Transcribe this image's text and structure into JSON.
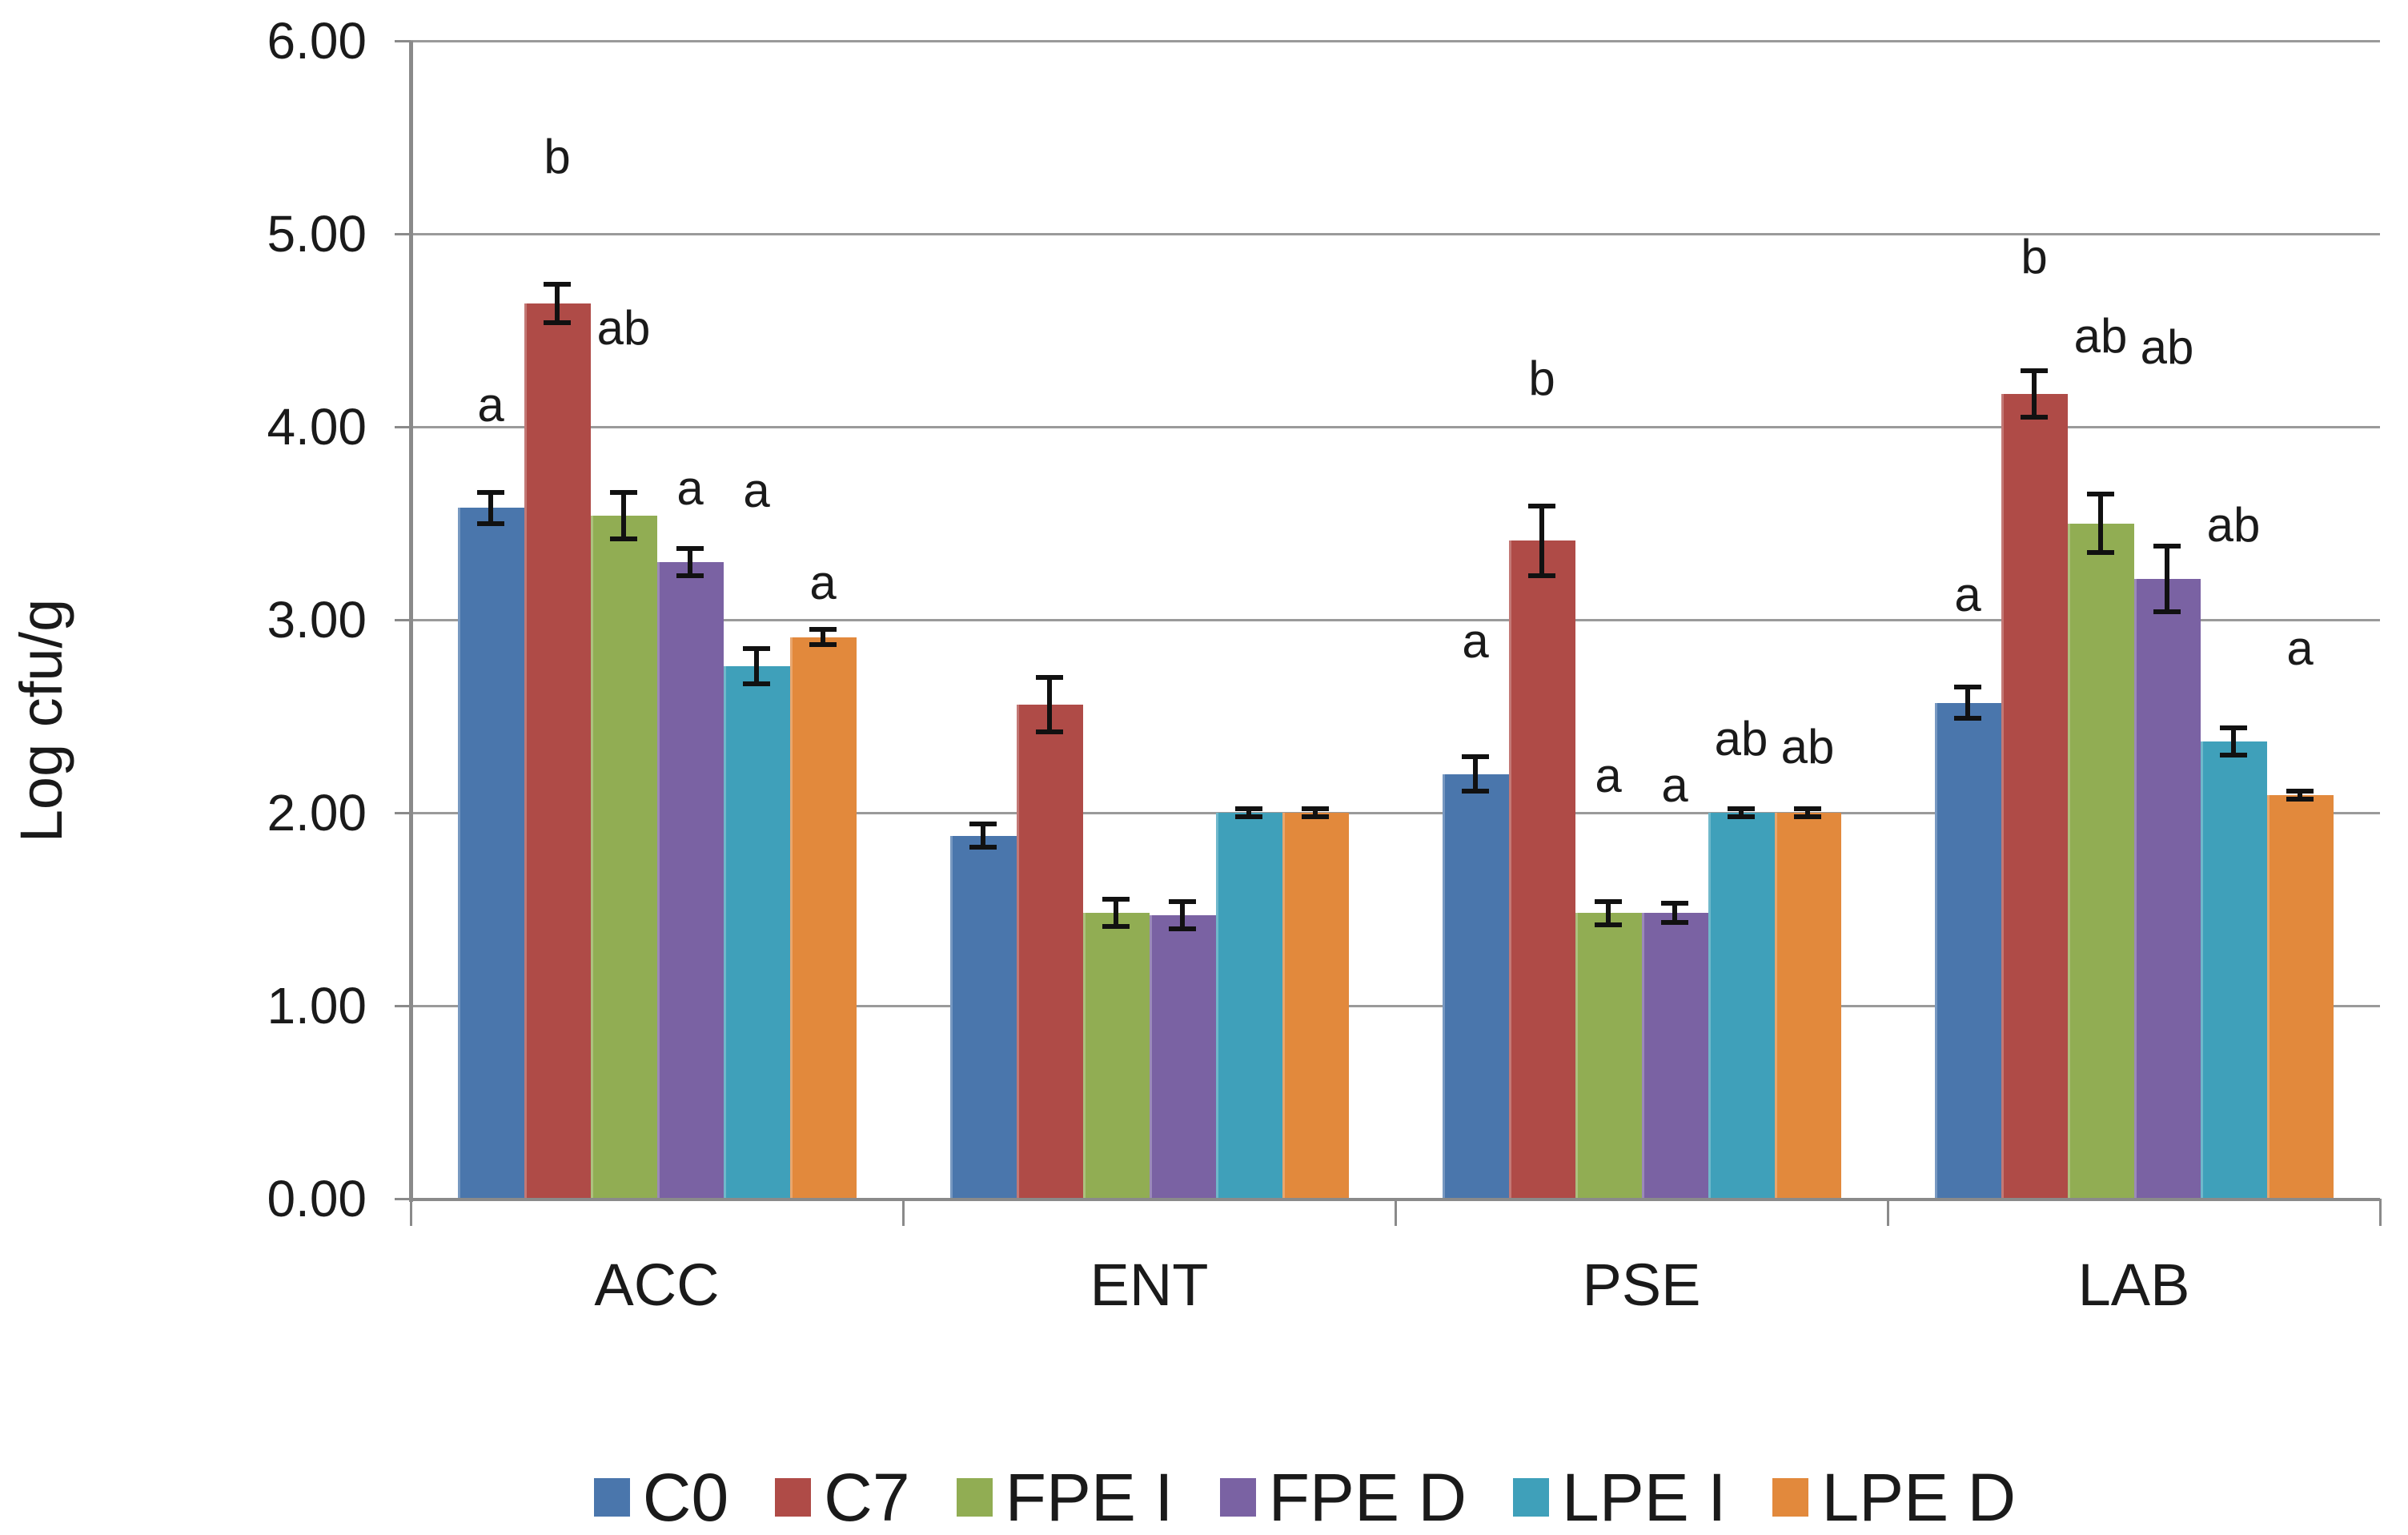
{
  "chart_data": {
    "type": "bar",
    "title": "",
    "xlabel": "",
    "ylabel": "Log cfu/g",
    "ylim": [
      0,
      6
    ],
    "y_ticks": [
      "0.00",
      "1.00",
      "2.00",
      "3.00",
      "4.00",
      "5.00",
      "6.00"
    ],
    "grid": "horizontal",
    "legend_position": "bottom",
    "error_bars": true,
    "categories": [
      "ACC",
      "ENT",
      "PSE",
      "LAB"
    ],
    "series": [
      {
        "name": "C0",
        "color": "#4a76ac",
        "values": [
          3.58,
          1.88,
          2.2,
          2.57
        ],
        "errors": [
          0.08,
          0.06,
          0.09,
          0.08
        ],
        "letters": [
          {
            "text": "a",
            "y": 4.11
          },
          null,
          {
            "text": "a",
            "y": 2.89
          },
          {
            "text": "a",
            "y": 3.13
          }
        ]
      },
      {
        "name": "C7",
        "color": "#af4b47",
        "values": [
          4.64,
          2.56,
          3.41,
          4.17
        ],
        "errors": [
          0.1,
          0.14,
          0.18,
          0.12
        ],
        "letters": [
          {
            "text": "b",
            "y": 5.4
          },
          null,
          {
            "text": "b",
            "y": 4.25
          },
          {
            "text": "b",
            "y": 4.88
          }
        ]
      },
      {
        "name": "FPE I",
        "color": "#91ad53",
        "values": [
          3.54,
          1.48,
          1.48,
          3.5
        ],
        "errors": [
          0.12,
          0.07,
          0.06,
          0.15
        ],
        "letters": [
          {
            "text": "ab",
            "y": 4.51
          },
          null,
          {
            "text": "a",
            "y": 2.19
          },
          {
            "text": "ab",
            "y": 4.47
          }
        ]
      },
      {
        "name": "FPE D",
        "color": "#7a62a3",
        "values": [
          3.3,
          1.47,
          1.48,
          3.21
        ],
        "errors": [
          0.07,
          0.07,
          0.05,
          0.17
        ],
        "letters": [
          {
            "text": "a",
            "y": 3.68
          },
          null,
          {
            "text": "a",
            "y": 2.14
          },
          {
            "text": "ab",
            "y": 4.41
          }
        ]
      },
      {
        "name": "LPE I",
        "color": "#3fa0ba",
        "values": [
          2.76,
          2.0,
          2.0,
          2.37
        ],
        "errors": [
          0.09,
          0.02,
          0.02,
          0.07
        ],
        "letters": [
          {
            "text": "a",
            "y": 3.67
          },
          null,
          {
            "text": "ab",
            "y": 2.38
          },
          {
            "text": "ab",
            "y": 3.49
          }
        ]
      },
      {
        "name": "LPE D",
        "color": "#e2893c",
        "values": [
          2.91,
          2.0,
          2.0,
          2.09
        ],
        "errors": [
          0.04,
          0.02,
          0.02,
          0.02
        ],
        "letters": [
          {
            "text": "a",
            "y": 3.19
          },
          null,
          {
            "text": "ab",
            "y": 2.34
          },
          {
            "text": "a",
            "y": 2.85
          }
        ]
      }
    ]
  }
}
